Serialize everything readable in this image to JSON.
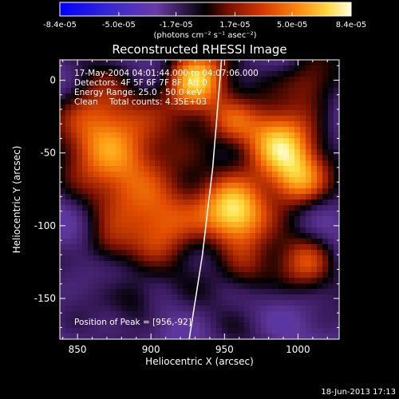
{
  "colorbar": {
    "ticks": [
      "-8.4e-05",
      "-5.0e-05",
      "-1.7e-05",
      "1.7e-05",
      "5.0e-05",
      "8.4e-05"
    ],
    "tick_values": [
      -8.4e-05,
      -5e-05,
      -1.7e-05,
      1.7e-05,
      5e-05,
      8.4e-05
    ],
    "range": [
      -8.4e-05,
      8.4e-05
    ],
    "unit_label": "(photons cm⁻² s⁻¹ asec⁻²)"
  },
  "title": "Reconstructed RHESSI Image",
  "info": {
    "time_range": "17-May-2004 04:01:44.000 to 04:07:06.000",
    "detectors": "Detectors: 4F 5F 6F 7F 8F, Att 0",
    "energy_range": "Energy Range: 25.0 - 50.0 keV",
    "method": "Clean",
    "total_counts": "Total counts: 4.35E+03",
    "peak": "Position of Peak = [956,-92]"
  },
  "axes": {
    "xlabel": "Heliocentric X (arcsec)",
    "ylabel": "Heliocentric Y (arcsec)",
    "xlim": [
      838,
      1028
    ],
    "ylim": [
      -178,
      14
    ],
    "xticks": [
      850,
      900,
      950,
      1000
    ],
    "yticks": [
      0,
      -50,
      -100,
      -150
    ]
  },
  "limb": {
    "points": [
      [
        948,
        14
      ],
      [
        942,
        -60
      ],
      [
        935,
        -120
      ],
      [
        926,
        -178
      ]
    ]
  },
  "peak_position": [
    956,
    -92
  ],
  "footer": {
    "timestamp": "18-Jun-2013 17:13"
  },
  "colors": {
    "background": "#000000",
    "text": "#ffffff",
    "colormap": [
      "#0000ff",
      "#4b3fbf",
      "#6a3aa8",
      "#000000",
      "#8a1a00",
      "#e04a00",
      "#ff9a10",
      "#ffe040",
      "#ffffff"
    ]
  }
}
